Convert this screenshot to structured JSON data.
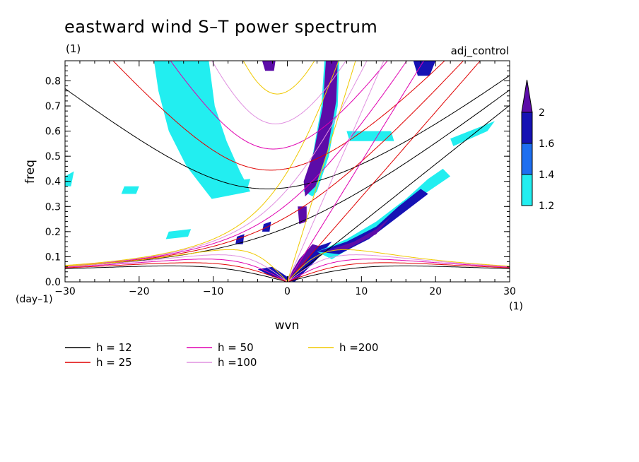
{
  "chart_data": {
    "type": "heatmap",
    "title": "eastward wind S–T power spectrum",
    "subtitle": "(1)",
    "case_label": "adj_control",
    "xlabel": "wvn",
    "ylabel": "freq",
    "x_unit": "(1)",
    "y_unit": "(day–1)",
    "xlim": [
      -30,
      30
    ],
    "ylim": [
      0,
      0.88
    ],
    "x_ticks": [
      -30,
      -20,
      -10,
      0,
      10,
      20,
      30
    ],
    "x_tick_labels": [
      "−30",
      "−20",
      "−10",
      "0",
      "10",
      "20",
      "30"
    ],
    "y_ticks": [
      0,
      0.1,
      0.2,
      0.3,
      0.4,
      0.5,
      0.6,
      0.7,
      0.8
    ],
    "y_tick_labels": [
      "0.0",
      "0.1",
      "0.2",
      "0.3",
      "0.4",
      "0.5",
      "0.6",
      "0.7",
      "0.8"
    ],
    "colorbar": {
      "levels": [
        1.2,
        1.4,
        1.6,
        2
      ],
      "labels": [
        "1.2",
        "1.4",
        "1.6",
        "2"
      ],
      "colors": [
        "#22eef0",
        "#1e6ff0",
        "#1612b4",
        "#5c0ca8"
      ]
    },
    "regions": [
      {
        "level": 4,
        "points": [
          [
            -14.8,
            0.88
          ],
          [
            -13.6,
            0.88
          ],
          [
            -12.8,
            0.74
          ],
          [
            -11.6,
            0.6
          ],
          [
            -10.4,
            0.52
          ],
          [
            -9.0,
            0.45
          ],
          [
            -10.2,
            0.43
          ],
          [
            -12.0,
            0.52
          ],
          [
            -13.4,
            0.64
          ],
          [
            -14.6,
            0.78
          ]
        ]
      },
      {
        "level": 3,
        "points": [
          [
            -16.4,
            0.88
          ],
          [
            -12.0,
            0.88
          ],
          [
            -11.6,
            0.74
          ],
          [
            -10.2,
            0.6
          ],
          [
            -8.4,
            0.48
          ],
          [
            -6.8,
            0.4
          ],
          [
            -8.6,
            0.37
          ],
          [
            -10.8,
            0.45
          ],
          [
            -13.2,
            0.58
          ],
          [
            -15.0,
            0.72
          ]
        ]
      },
      {
        "level": 2,
        "points": [
          [
            -17.2,
            0.88
          ],
          [
            -11.4,
            0.88
          ],
          [
            -10.8,
            0.72
          ],
          [
            -9.2,
            0.58
          ],
          [
            -7.4,
            0.46
          ],
          [
            -6.0,
            0.38
          ],
          [
            -9.6,
            0.35
          ],
          [
            -12.4,
            0.47
          ],
          [
            -14.8,
            0.62
          ],
          [
            -16.4,
            0.76
          ]
        ]
      },
      {
        "level": 1,
        "points": [
          [
            -18.0,
            0.88
          ],
          [
            -10.6,
            0.88
          ],
          [
            -9.8,
            0.7
          ],
          [
            -8.2,
            0.56
          ],
          [
            -6.4,
            0.44
          ],
          [
            -5.0,
            0.36
          ],
          [
            -10.2,
            0.33
          ],
          [
            -13.6,
            0.46
          ],
          [
            -16.0,
            0.6
          ],
          [
            -17.4,
            0.76
          ]
        ]
      },
      {
        "level": 1,
        "points": [
          [
            5.0,
            0.88
          ],
          [
            7.0,
            0.88
          ],
          [
            6.8,
            0.7
          ],
          [
            5.6,
            0.5
          ],
          [
            4.0,
            0.36
          ],
          [
            3.4,
            0.34
          ],
          [
            2.2,
            0.36
          ],
          [
            3.4,
            0.5
          ],
          [
            4.6,
            0.7
          ]
        ]
      },
      {
        "level": 4,
        "points": [
          [
            5.2,
            0.88
          ],
          [
            6.8,
            0.88
          ],
          [
            6.6,
            0.72
          ],
          [
            5.4,
            0.52
          ],
          [
            3.8,
            0.38
          ],
          [
            2.4,
            0.34
          ],
          [
            2.2,
            0.4
          ],
          [
            3.6,
            0.52
          ],
          [
            4.8,
            0.7
          ]
        ]
      },
      {
        "level": 4,
        "points": [
          [
            1.4,
            0.3
          ],
          [
            2.6,
            0.3
          ],
          [
            2.6,
            0.24
          ],
          [
            1.6,
            0.23
          ]
        ]
      },
      {
        "level": 4,
        "points": [
          [
            0.2,
            0.02
          ],
          [
            1.6,
            0.09
          ],
          [
            3.4,
            0.15
          ],
          [
            4.6,
            0.14
          ],
          [
            3.6,
            0.1
          ],
          [
            1.8,
            0.04
          ],
          [
            0.6,
            0.0
          ]
        ]
      },
      {
        "level": 3,
        "points": [
          [
            -4.0,
            0.05
          ],
          [
            -2.0,
            0.06
          ],
          [
            0,
            0.02
          ],
          [
            2,
            0.06
          ],
          [
            4,
            0.14
          ],
          [
            6,
            0.16
          ],
          [
            4,
            0.09
          ],
          [
            1,
            0.0
          ],
          [
            -2,
            0.02
          ]
        ]
      },
      {
        "level": 1,
        "points": [
          [
            4.0,
            0.12
          ],
          [
            8.0,
            0.17
          ],
          [
            12.0,
            0.24
          ],
          [
            16.0,
            0.33
          ],
          [
            19.0,
            0.41
          ],
          [
            21.0,
            0.45
          ],
          [
            22.0,
            0.42
          ],
          [
            18.0,
            0.34
          ],
          [
            14.0,
            0.24
          ],
          [
            10.0,
            0.16
          ],
          [
            6.0,
            0.09
          ]
        ]
      },
      {
        "level": 3,
        "points": [
          [
            4.0,
            0.12
          ],
          [
            8.0,
            0.16
          ],
          [
            12.0,
            0.22
          ],
          [
            15.0,
            0.3
          ],
          [
            18.0,
            0.37
          ],
          [
            19.0,
            0.35
          ],
          [
            15.0,
            0.26
          ],
          [
            11.0,
            0.17
          ],
          [
            7.0,
            0.11
          ]
        ]
      },
      {
        "level": 4,
        "points": [
          [
            5.0,
            0.12
          ],
          [
            9.0,
            0.16
          ],
          [
            12.0,
            0.21
          ],
          [
            14.0,
            0.26
          ],
          [
            12.0,
            0.19
          ],
          [
            8.0,
            0.13
          ]
        ]
      },
      {
        "level": 3,
        "points": [
          [
            17.0,
            0.88
          ],
          [
            20.0,
            0.88
          ],
          [
            19.2,
            0.82
          ],
          [
            17.6,
            0.82
          ]
        ]
      },
      {
        "level": 1,
        "points": [
          [
            -30.0,
            0.42
          ],
          [
            -28.8,
            0.44
          ],
          [
            -29.2,
            0.38
          ],
          [
            -30.0,
            0.38
          ]
        ]
      },
      {
        "level": 3,
        "points": [
          [
            -6.8,
            0.18
          ],
          [
            -5.8,
            0.19
          ],
          [
            -6.0,
            0.15
          ],
          [
            -7.0,
            0.15
          ]
        ]
      },
      {
        "level": 3,
        "points": [
          [
            -3.2,
            0.23
          ],
          [
            -2.2,
            0.24
          ],
          [
            -2.4,
            0.2
          ],
          [
            -3.4,
            0.2
          ]
        ]
      },
      {
        "level": 4,
        "points": [
          [
            -3.4,
            0.88
          ],
          [
            -1.6,
            0.88
          ],
          [
            -1.8,
            0.84
          ],
          [
            -3.0,
            0.84
          ]
        ]
      },
      {
        "level": 1,
        "points": [
          [
            -22.0,
            0.38
          ],
          [
            -20.0,
            0.38
          ],
          [
            -20.4,
            0.35
          ],
          [
            -22.4,
            0.35
          ]
        ]
      },
      {
        "level": 1,
        "points": [
          [
            -8.0,
            0.4
          ],
          [
            -5.0,
            0.41
          ],
          [
            -5.4,
            0.37
          ],
          [
            -8.4,
            0.37
          ]
        ]
      },
      {
        "level": 1,
        "points": [
          [
            8.0,
            0.6
          ],
          [
            14.0,
            0.6
          ],
          [
            14.4,
            0.56
          ],
          [
            8.4,
            0.56
          ]
        ]
      },
      {
        "level": 1,
        "points": [
          [
            22.0,
            0.57
          ],
          [
            28.0,
            0.64
          ],
          [
            27.0,
            0.6
          ],
          [
            22.4,
            0.54
          ]
        ]
      },
      {
        "level": 1,
        "points": [
          [
            -16.0,
            0.2
          ],
          [
            -13.0,
            0.21
          ],
          [
            -13.4,
            0.18
          ],
          [
            -16.4,
            0.17
          ]
        ]
      }
    ],
    "series": [
      {
        "name": "h = 12",
        "color": "#000000",
        "h": 12
      },
      {
        "name": "h = 25",
        "color": "#e00000",
        "h": 25
      },
      {
        "name": "h = 50",
        "color": "#e000b0",
        "h": 50
      },
      {
        "name": "h =100",
        "color": "#e090e0",
        "h": 100
      },
      {
        "name": "h =200",
        "color": "#f0c800",
        "h": 200
      }
    ]
  }
}
